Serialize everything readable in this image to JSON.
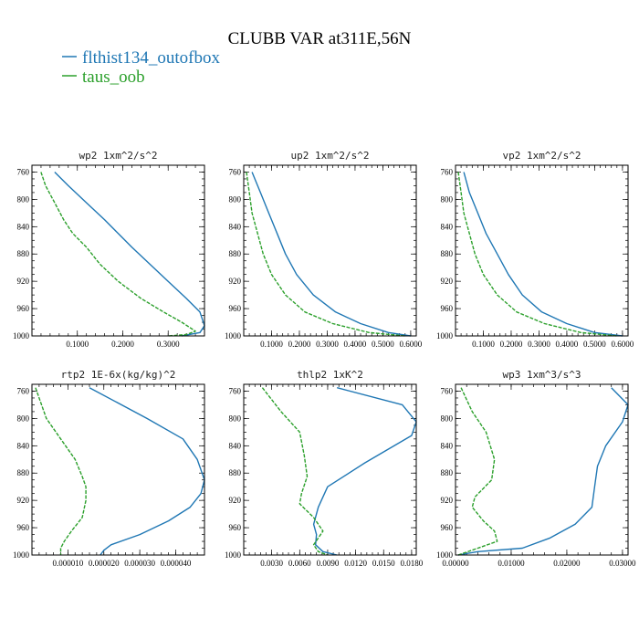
{
  "figure": {
    "title": "CLUBB VAR at311E,56N",
    "legend": [
      {
        "label": "flthist134_outofbox",
        "color": "#1f77b4"
      },
      {
        "label": "taus_oob",
        "color": "#2ca02c"
      }
    ]
  },
  "chart_data": [
    {
      "type": "line",
      "title": "wp2   1xm^2/s^2",
      "xlim": [
        0.0,
        0.38
      ],
      "ylim": [
        1000,
        750
      ],
      "x_ticks": [
        0.1,
        0.2,
        0.3
      ],
      "x_tick_labels": [
        "0.1000",
        "0.2000",
        "0.3000"
      ],
      "y_ticks": [
        760,
        800,
        840,
        880,
        920,
        960,
        1000
      ],
      "series": [
        {
          "name": "flthist134_outofbox",
          "x": [
            0.05,
            0.08,
            0.12,
            0.16,
            0.19,
            0.22,
            0.26,
            0.3,
            0.34,
            0.37,
            0.38,
            0.37,
            0.33
          ],
          "y": [
            760,
            780,
            805,
            830,
            850,
            870,
            895,
            920,
            945,
            965,
            985,
            995,
            1000
          ]
        },
        {
          "name": "taus_oob",
          "x": [
            0.02,
            0.03,
            0.05,
            0.07,
            0.09,
            0.12,
            0.15,
            0.19,
            0.24,
            0.29,
            0.33,
            0.36,
            0.34,
            0.3
          ],
          "y": [
            760,
            780,
            805,
            830,
            850,
            870,
            895,
            920,
            945,
            965,
            980,
            993,
            998,
            1000
          ]
        }
      ]
    },
    {
      "type": "line",
      "title": "up2   1xm^2/s^2",
      "xlim": [
        0.0,
        0.62
      ],
      "ylim": [
        1000,
        750
      ],
      "x_ticks": [
        0.1,
        0.2,
        0.3,
        0.4,
        0.5,
        0.6
      ],
      "x_tick_labels": [
        "0.1000",
        "0.2000",
        "0.3000",
        "0.4000",
        "0.5000",
        "0.6000"
      ],
      "y_ticks": [
        760,
        800,
        840,
        880,
        920,
        960,
        1000
      ],
      "series": [
        {
          "name": "flthist134_outofbox",
          "x": [
            0.03,
            0.06,
            0.09,
            0.12,
            0.15,
            0.19,
            0.25,
            0.33,
            0.42,
            0.52,
            0.6
          ],
          "y": [
            760,
            790,
            820,
            850,
            880,
            910,
            940,
            965,
            982,
            995,
            1000
          ]
        },
        {
          "name": "taus_oob",
          "x": [
            0.01,
            0.02,
            0.03,
            0.05,
            0.07,
            0.1,
            0.15,
            0.22,
            0.32,
            0.45,
            0.58
          ],
          "y": [
            760,
            790,
            820,
            850,
            880,
            910,
            940,
            965,
            982,
            995,
            1000
          ]
        }
      ]
    },
    {
      "type": "line",
      "title": "vp2   1xm^2/s^2",
      "xlim": [
        0.0,
        0.62
      ],
      "ylim": [
        1000,
        750
      ],
      "x_ticks": [
        0.1,
        0.2,
        0.3,
        0.4,
        0.5,
        0.6
      ],
      "x_tick_labels": [
        "0.1000",
        "0.2000",
        "0.3000",
        "0.4000",
        "0.5000",
        "0.6000"
      ],
      "y_ticks": [
        760,
        800,
        840,
        880,
        920,
        960,
        1000
      ],
      "series": [
        {
          "name": "flthist134_outofbox",
          "x": [
            0.03,
            0.05,
            0.08,
            0.11,
            0.15,
            0.19,
            0.24,
            0.31,
            0.4,
            0.5,
            0.6
          ],
          "y": [
            760,
            790,
            820,
            850,
            880,
            910,
            940,
            965,
            982,
            995,
            1000
          ]
        },
        {
          "name": "taus_oob",
          "x": [
            0.01,
            0.02,
            0.03,
            0.05,
            0.07,
            0.1,
            0.15,
            0.22,
            0.32,
            0.45,
            0.58
          ],
          "y": [
            760,
            790,
            820,
            850,
            880,
            910,
            940,
            965,
            982,
            995,
            1000
          ]
        }
      ]
    },
    {
      "type": "line",
      "title": "rtp2   1E-6x(kg/kg)^2",
      "xlim": [
        0.0,
        4.8e-05
      ],
      "ylim": [
        1000,
        750
      ],
      "x_ticks": [
        1e-05,
        2e-05,
        3e-05,
        4e-05
      ],
      "x_tick_labels": [
        "0.000010",
        "0.000020",
        "0.000030",
        "0.000040"
      ],
      "y_ticks": [
        760,
        800,
        840,
        880,
        920,
        960,
        1000
      ],
      "series": [
        {
          "name": "flthist134_outofbox",
          "x": [
            1.6e-05,
            3.2e-05,
            4.2e-05,
            4.6e-05,
            4.8e-05,
            4.7e-05,
            4.4e-05,
            3.8e-05,
            3e-05,
            2.2e-05,
            2e-05,
            1.9e-05
          ],
          "y": [
            755,
            800,
            830,
            860,
            890,
            910,
            930,
            950,
            970,
            985,
            993,
            1000
          ]
        },
        {
          "name": "taus_oob",
          "x": [
            1e-06,
            4e-06,
            8e-06,
            1.2e-05,
            1.4e-05,
            1.5e-05,
            1.5e-05,
            1.4e-05,
            1.1e-05,
            9e-06,
            8e-06,
            8e-06
          ],
          "y": [
            755,
            800,
            830,
            860,
            885,
            900,
            920,
            945,
            965,
            980,
            990,
            1000
          ]
        }
      ]
    },
    {
      "type": "line",
      "title": "thlp2   1xK^2",
      "xlim": [
        0.0,
        0.0185
      ],
      "ylim": [
        1000,
        750
      ],
      "x_ticks": [
        0.003,
        0.006,
        0.009,
        0.012,
        0.015,
        0.018
      ],
      "x_tick_labels": [
        "0.0030",
        "0.0060",
        "0.0090",
        "0.0120",
        "0.0150",
        "0.0180"
      ],
      "y_ticks": [
        760,
        800,
        840,
        880,
        920,
        960,
        1000
      ],
      "series": [
        {
          "name": "flthist134_outofbox",
          "x": [
            0.01,
            0.017,
            0.0185,
            0.018,
            0.013,
            0.009,
            0.008,
            0.0075,
            0.0078,
            0.0077,
            0.0085,
            0.01
          ],
          "y": [
            755,
            780,
            805,
            825,
            865,
            900,
            930,
            955,
            970,
            985,
            995,
            1000
          ]
        },
        {
          "name": "taus_oob",
          "x": [
            0.002,
            0.004,
            0.006,
            0.0065,
            0.0068,
            0.0062,
            0.006,
            0.0075,
            0.0085,
            0.0075,
            0.008,
            0.009
          ],
          "y": [
            755,
            790,
            820,
            855,
            885,
            910,
            925,
            945,
            965,
            985,
            995,
            1000
          ]
        }
      ]
    },
    {
      "type": "line",
      "title": "wp3   1xm^3/s^3",
      "xlim": [
        0.0,
        0.031
      ],
      "ylim": [
        1000,
        750
      ],
      "x_ticks": [
        0.0,
        0.01,
        0.02,
        0.03
      ],
      "x_tick_labels": [
        "0.00000",
        "0.01000",
        "0.02000",
        "0.03000"
      ],
      "y_ticks": [
        760,
        800,
        840,
        880,
        920,
        960,
        1000
      ],
      "series": [
        {
          "name": "flthist134_outofbox",
          "x": [
            0.028,
            0.031,
            0.03,
            0.027,
            0.0255,
            0.025,
            0.0245,
            0.0215,
            0.017,
            0.012,
            0.004,
            0.0005
          ],
          "y": [
            755,
            780,
            805,
            840,
            870,
            900,
            930,
            955,
            975,
            990,
            995,
            1000
          ]
        },
        {
          "name": "taus_oob",
          "x": [
            0.001,
            0.003,
            0.0055,
            0.007,
            0.0065,
            0.0035,
            0.003,
            0.005,
            0.007,
            0.0075,
            0.004,
            0.0005
          ],
          "y": [
            755,
            790,
            820,
            860,
            890,
            915,
            930,
            950,
            965,
            980,
            990,
            1000
          ]
        }
      ]
    }
  ]
}
